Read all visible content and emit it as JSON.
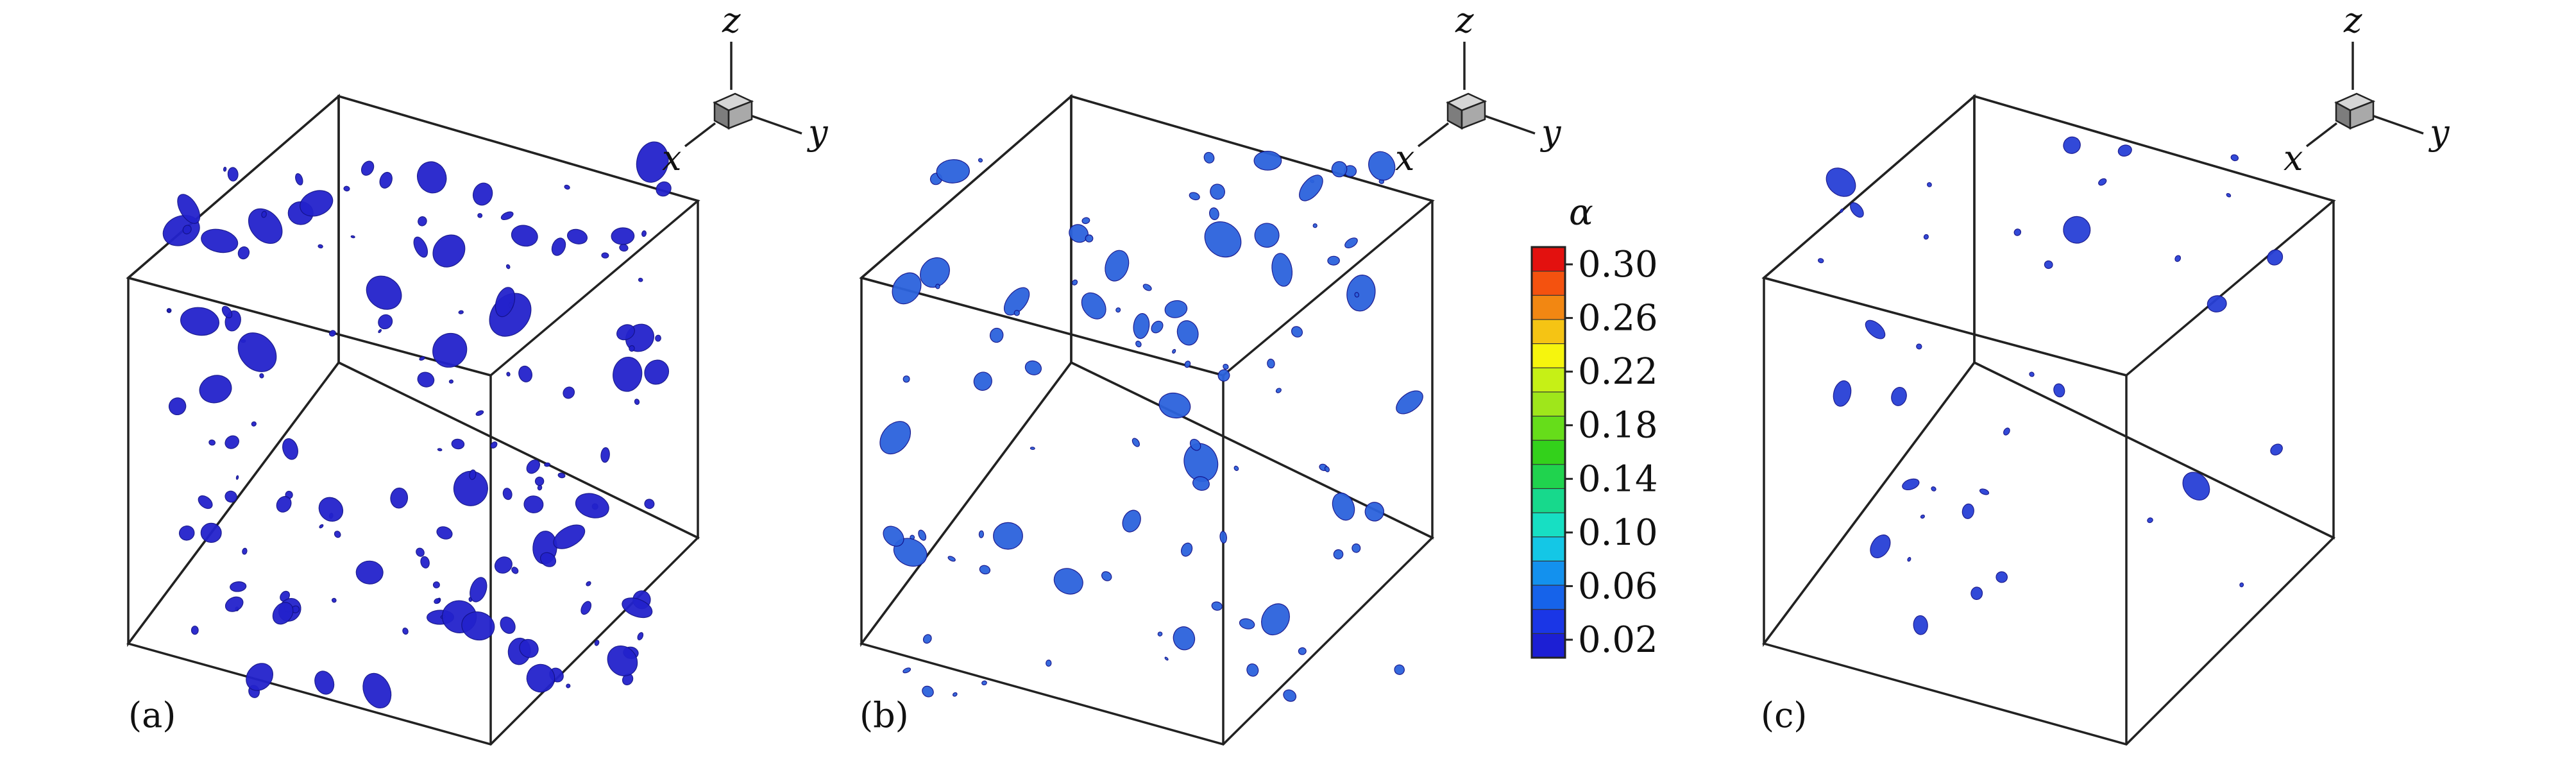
{
  "figure": {
    "panels": [
      {
        "label": "(a)"
      },
      {
        "label": "(b)"
      },
      {
        "label": "(c)"
      }
    ],
    "axes_triad": {
      "x": "x",
      "y": "y",
      "z": "z"
    },
    "colorbar": {
      "title": "α",
      "ticks": [
        "0.30",
        "0.26",
        "0.22",
        "0.18",
        "0.14",
        "0.10",
        "0.06",
        "0.02"
      ],
      "colors": [
        "#e3110f",
        "#f4520f",
        "#f28712",
        "#f5c414",
        "#f6f50d",
        "#c6f016",
        "#9fe61b",
        "#66dd1a",
        "#33d11b",
        "#20d34e",
        "#17d98c",
        "#17dfc3",
        "#14c7e6",
        "#1391ee",
        "#1663ea",
        "#1a36e6",
        "#1c1fd4"
      ]
    },
    "blob_colors": {
      "panel_a": "#2322cc",
      "panel_b": "#2c63dd",
      "panel_c": "#2840d6"
    }
  }
}
